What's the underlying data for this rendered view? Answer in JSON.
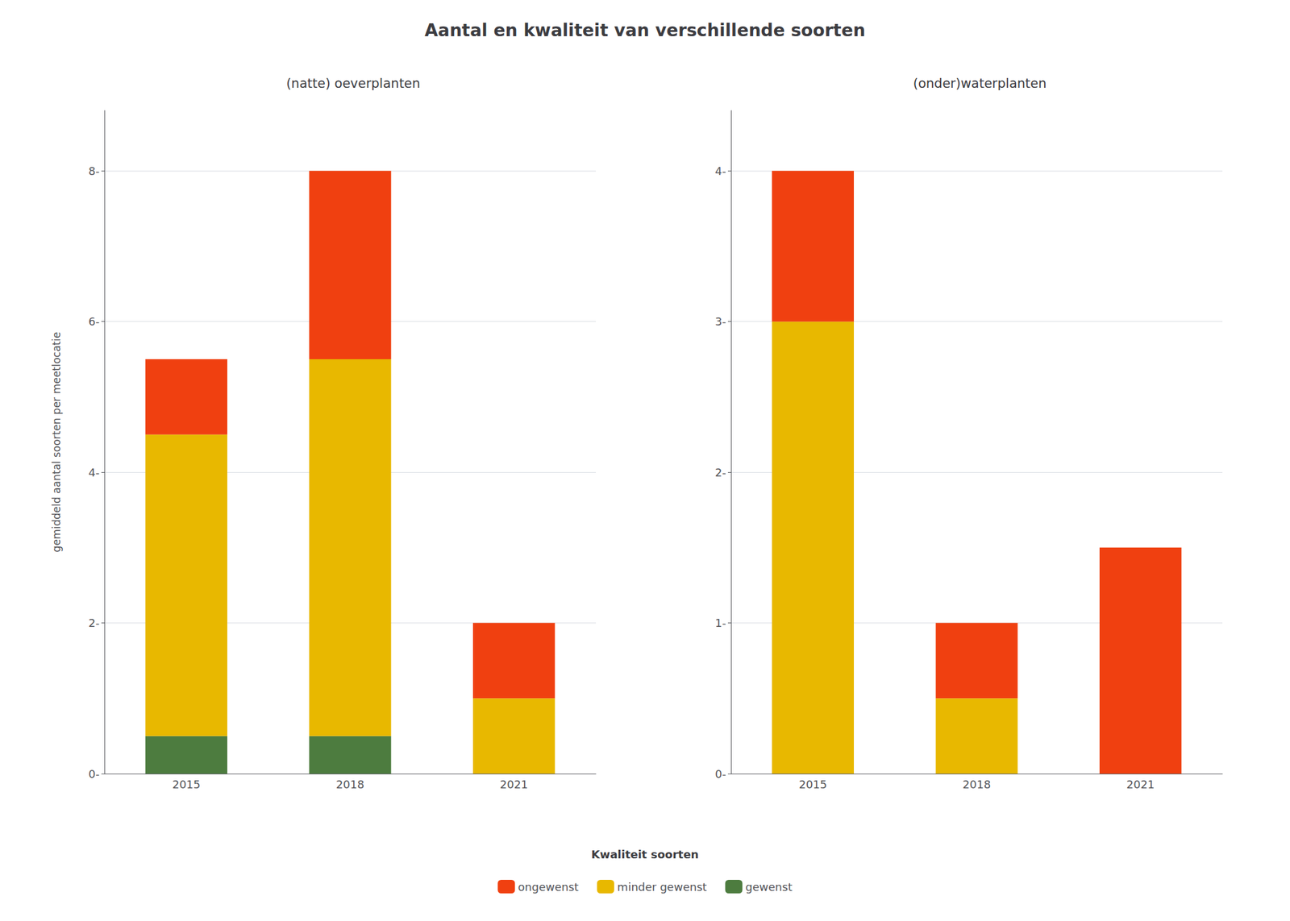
{
  "chart_data": [
    {
      "type": "bar",
      "title": "Aantal en kwaliteit van verschillende soorten",
      "subtitle": "(natte) oeverplanten",
      "ylabel": "gemiddeld aantal soorten per meetlocatie",
      "categories": [
        "2015",
        "2018",
        "2021"
      ],
      "series": [
        {
          "name": "gewenst",
          "color": "#4d7c3f",
          "values": [
            0.5,
            0.5,
            0.0
          ]
        },
        {
          "name": "minder gewenst",
          "color": "#e8b800",
          "values": [
            4.0,
            5.0,
            1.0
          ]
        },
        {
          "name": "ongewenst",
          "color": "#f04010",
          "values": [
            1.0,
            2.5,
            1.0
          ]
        }
      ],
      "stacked": true,
      "ylim": [
        0,
        8.8
      ],
      "yticks": [
        {
          "value": 0,
          "label": "0-"
        },
        {
          "value": 2,
          "label": "2-"
        },
        {
          "value": 4,
          "label": "4-"
        },
        {
          "value": 6,
          "label": "6-"
        },
        {
          "value": 8,
          "label": "8-"
        }
      ],
      "grid": true,
      "legend": "bottom",
      "legend_title": "Kwaliteit soorten"
    },
    {
      "type": "bar",
      "subtitle": "(onder)waterplanten",
      "categories": [
        "2015",
        "2018",
        "2021"
      ],
      "series": [
        {
          "name": "gewenst",
          "color": "#4d7c3f",
          "values": [
            0.0,
            0.0,
            0.0
          ]
        },
        {
          "name": "minder gewenst",
          "color": "#e8b800",
          "values": [
            3.0,
            0.5,
            0.0
          ]
        },
        {
          "name": "ongewenst",
          "color": "#f04010",
          "values": [
            1.0,
            0.5,
            1.5
          ]
        }
      ],
      "stacked": true,
      "ylim": [
        0,
        4.4
      ],
      "yticks": [
        {
          "value": 0,
          "label": "0-"
        },
        {
          "value": 1,
          "label": "1-"
        },
        {
          "value": 2,
          "label": "2-"
        },
        {
          "value": 3,
          "label": "3-"
        },
        {
          "value": 4,
          "label": "4-"
        }
      ],
      "grid": true
    }
  ]
}
